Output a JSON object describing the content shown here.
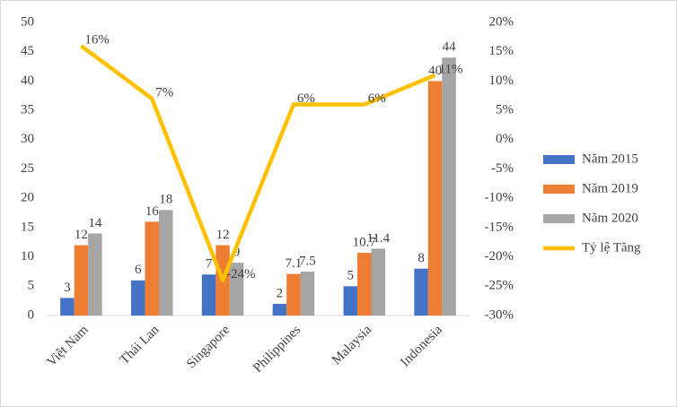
{
  "chart_data": {
    "type": "bar",
    "categories": [
      "Việt Nam",
      "Thái Lan",
      "Singapore",
      "Philippines",
      "Malaysia",
      "Indonesia"
    ],
    "series": [
      {
        "name": "Năm 2015",
        "color": "#4472c4",
        "values": [
          3,
          6,
          7,
          2,
          5,
          8
        ]
      },
      {
        "name": "Năm 2019",
        "color": "#ed7d31",
        "values": [
          12,
          16,
          12,
          7.1,
          10.7,
          40
        ]
      },
      {
        "name": "Năm 2020",
        "color": "#a5a5a5",
        "values": [
          14,
          18,
          9,
          7.5,
          11.4,
          44
        ]
      },
      {
        "name": "Tỷ lệ Tăng",
        "color": "#ffc000",
        "type": "line",
        "axis": "y2",
        "values": [
          16,
          7,
          -24,
          6,
          6,
          11
        ],
        "value_labels": [
          "16%",
          "7%",
          "-24%",
          "6%",
          "6%",
          "11%"
        ]
      }
    ],
    "ylim": [
      0,
      50
    ],
    "yticks": [
      0,
      5,
      10,
      15,
      20,
      25,
      30,
      35,
      40,
      45,
      50
    ],
    "y2lim": [
      -30,
      20
    ],
    "y2ticks": [
      {
        "value": -30,
        "label": "-30%"
      },
      {
        "value": -25,
        "label": "-25%"
      },
      {
        "value": -20,
        "label": "-20%"
      },
      {
        "value": -15,
        "label": "-15%"
      },
      {
        "value": -10,
        "label": "-10%"
      },
      {
        "value": -5,
        "label": "-5%"
      },
      {
        "value": 0,
        "label": "0%"
      },
      {
        "value": 5,
        "label": "5%"
      },
      {
        "value": 10,
        "label": "10%"
      },
      {
        "value": 15,
        "label": "15%"
      },
      {
        "value": 20,
        "label": "20%"
      }
    ],
    "legend": "right"
  }
}
